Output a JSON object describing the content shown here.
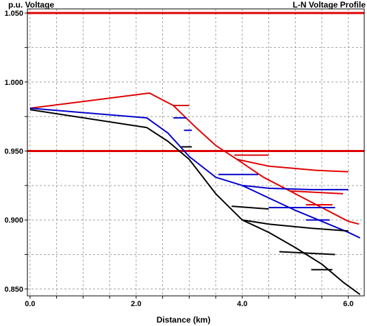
{
  "chart_data": {
    "type": "line",
    "title": "L-N Voltage Profile",
    "ylabel": "p.u. Voltage",
    "xlabel": "Distance (km)",
    "xlim": [
      -0.05,
      6.3
    ],
    "ylim": [
      0.845,
      1.053
    ],
    "x_ticks": [
      "0.0",
      "2.0",
      "4.0",
      "6.0"
    ],
    "x_tick_values": [
      0,
      2,
      4,
      6
    ],
    "y_ticks": [
      "0.850",
      "0.900",
      "0.950",
      "1.000",
      "1.050"
    ],
    "y_tick_values": [
      0.85,
      0.9,
      0.95,
      1.0,
      1.05
    ],
    "grid": true,
    "limits": [
      {
        "value": 1.05,
        "color": "#e00000"
      },
      {
        "value": 0.95,
        "color": "#e00000"
      }
    ],
    "series": [
      {
        "color": "#e00000",
        "lines": [
          [
            [
              0.0,
              0.981
            ],
            [
              2.25,
              0.992
            ],
            [
              2.7,
              0.983
            ],
            [
              3.1,
              0.968
            ],
            [
              3.5,
              0.954
            ],
            [
              3.9,
              0.944
            ],
            [
              4.5,
              0.939
            ],
            [
              5.4,
              0.936
            ],
            [
              6.0,
              0.935
            ]
          ],
          [
            [
              2.7,
              0.983
            ],
            [
              3.0,
              0.983
            ]
          ],
          [
            [
              3.85,
              0.947
            ],
            [
              4.5,
              0.947
            ]
          ],
          [
            [
              3.9,
              0.944
            ],
            [
              4.4,
              0.931
            ],
            [
              5.0,
              0.919
            ],
            [
              5.5,
              0.909
            ],
            [
              6.0,
              0.899
            ],
            [
              6.2,
              0.897
            ]
          ],
          [
            [
              4.9,
              0.921
            ],
            [
              5.9,
              0.919
            ]
          ],
          [
            [
              5.2,
              0.911
            ],
            [
              5.7,
              0.911
            ]
          ]
        ]
      },
      {
        "color": "#0000cc",
        "lines": [
          [
            [
              0.0,
              0.981
            ],
            [
              2.2,
              0.974
            ],
            [
              2.6,
              0.963
            ],
            [
              3.0,
              0.946
            ],
            [
              3.5,
              0.931
            ],
            [
              4.0,
              0.925
            ],
            [
              4.5,
              0.923
            ],
            [
              5.3,
              0.922
            ],
            [
              6.0,
              0.922
            ]
          ],
          [
            [
              2.7,
              0.974
            ],
            [
              2.95,
              0.974
            ]
          ],
          [
            [
              2.9,
              0.965
            ],
            [
              3.05,
              0.965
            ]
          ],
          [
            [
              3.55,
              0.933
            ],
            [
              4.3,
              0.933
            ]
          ],
          [
            [
              4.0,
              0.925
            ],
            [
              4.5,
              0.916
            ],
            [
              5.0,
              0.907
            ],
            [
              5.5,
              0.899
            ],
            [
              6.0,
              0.891
            ],
            [
              6.22,
              0.887
            ]
          ],
          [
            [
              4.5,
              0.909
            ],
            [
              5.75,
              0.909
            ]
          ],
          [
            [
              5.2,
              0.9
            ],
            [
              5.65,
              0.9
            ]
          ]
        ]
      },
      {
        "color": "#000000",
        "lines": [
          [
            [
              0.0,
              0.98
            ],
            [
              2.2,
              0.967
            ],
            [
              2.6,
              0.957
            ],
            [
              3.0,
              0.944
            ],
            [
              3.5,
              0.919
            ],
            [
              4.0,
              0.9
            ],
            [
              4.5,
              0.897
            ],
            [
              5.3,
              0.894
            ],
            [
              6.0,
              0.892
            ]
          ],
          [
            [
              2.85,
              0.953
            ],
            [
              3.05,
              0.953
            ]
          ],
          [
            [
              3.8,
              0.91
            ],
            [
              4.5,
              0.908
            ]
          ],
          [
            [
              4.0,
              0.9
            ],
            [
              4.5,
              0.891
            ],
            [
              5.0,
              0.88
            ],
            [
              5.5,
              0.868
            ],
            [
              5.9,
              0.855
            ],
            [
              6.22,
              0.846
            ]
          ],
          [
            [
              4.7,
              0.877
            ],
            [
              5.75,
              0.875
            ]
          ],
          [
            [
              5.3,
              0.864
            ],
            [
              5.7,
              0.864
            ]
          ]
        ]
      }
    ]
  }
}
